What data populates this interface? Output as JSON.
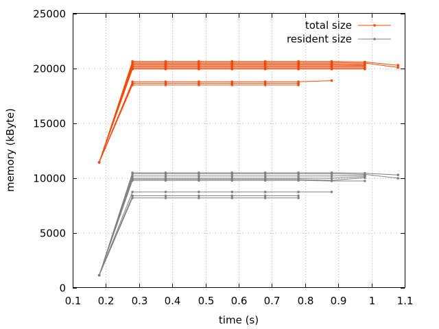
{
  "chart_data": {
    "type": "line",
    "xlabel": "time (s)",
    "ylabel": "memory  (kByte)",
    "xlim": [
      0.1,
      1.1
    ],
    "ylim": [
      0,
      25000
    ],
    "xticks": [
      "0.1",
      "0.2",
      "0.3",
      "0.4",
      "0.5",
      "0.6",
      "0.7",
      "0.8",
      "0.9",
      "1",
      "1.1"
    ],
    "yticks": [
      "0",
      "5000",
      "10000",
      "15000",
      "20000",
      "25000"
    ],
    "grid": true,
    "legend_position": "top-right",
    "series": [
      {
        "name": "total size",
        "color": "#ff4500",
        "lines": [
          {
            "x": [
              0.18,
              0.28,
              0.38,
              0.48,
              0.58,
              0.68,
              0.78,
              0.88,
              0.98,
              1.08
            ],
            "y": [
              11450,
              20650,
              20650,
              20650,
              20650,
              20650,
              20650,
              20650,
              20600,
              20300
            ]
          },
          {
            "x": [
              0.18,
              0.28,
              0.38,
              0.48,
              0.58,
              0.68,
              0.78,
              0.88,
              0.98,
              1.08
            ],
            "y": [
              11450,
              20550,
              20550,
              20550,
              20550,
              20550,
              20550,
              20550,
              20500,
              20100
            ]
          },
          {
            "x": [
              0.18,
              0.28,
              0.38,
              0.48,
              0.58,
              0.68,
              0.78,
              0.88,
              0.98
            ],
            "y": [
              11450,
              20450,
              20450,
              20450,
              20450,
              20450,
              20450,
              20450,
              20400
            ]
          },
          {
            "x": [
              0.18,
              0.28,
              0.38,
              0.48,
              0.58,
              0.68,
              0.78,
              0.88,
              0.98
            ],
            "y": [
              11450,
              20350,
              20350,
              20350,
              20350,
              20350,
              20350,
              20350,
              20300
            ]
          },
          {
            "x": [
              0.18,
              0.28,
              0.38,
              0.48,
              0.58,
              0.68,
              0.78,
              0.88,
              0.98
            ],
            "y": [
              11450,
              20250,
              20250,
              20250,
              20250,
              20250,
              20250,
              20250,
              20250
            ]
          },
          {
            "x": [
              0.18,
              0.28,
              0.38,
              0.48,
              0.58,
              0.68,
              0.78,
              0.88,
              0.98
            ],
            "y": [
              11450,
              20150,
              20150,
              20150,
              20150,
              20150,
              20150,
              20150,
              20150
            ]
          },
          {
            "x": [
              0.18,
              0.28,
              0.38,
              0.48,
              0.58,
              0.68,
              0.78,
              0.88,
              0.98
            ],
            "y": [
              11450,
              20050,
              20050,
              20050,
              20050,
              20050,
              20050,
              20050,
              20050
            ]
          },
          {
            "x": [
              0.18,
              0.28,
              0.38,
              0.48,
              0.58,
              0.68,
              0.78,
              0.88,
              0.98
            ],
            "y": [
              11450,
              19950,
              19950,
              19950,
              19950,
              19950,
              19950,
              19950,
              19950
            ]
          },
          {
            "x": [
              0.18,
              0.28,
              0.38,
              0.48,
              0.58,
              0.68,
              0.78,
              0.88
            ],
            "y": [
              11450,
              18800,
              18800,
              18800,
              18800,
              18800,
              18800,
              18900
            ]
          },
          {
            "x": [
              0.18,
              0.28,
              0.38,
              0.48,
              0.58,
              0.68,
              0.78
            ],
            "y": [
              11450,
              18650,
              18650,
              18650,
              18650,
              18650,
              18650
            ]
          },
          {
            "x": [
              0.18,
              0.28,
              0.38,
              0.48,
              0.58,
              0.68,
              0.78
            ],
            "y": [
              11450,
              18500,
              18500,
              18500,
              18500,
              18500,
              18500
            ]
          }
        ]
      },
      {
        "name": "resident size",
        "color": "#808080",
        "lines": [
          {
            "x": [
              0.18,
              0.28,
              0.38,
              0.48,
              0.58,
              0.68,
              0.78,
              0.88,
              0.98,
              1.08
            ],
            "y": [
              1150,
              10500,
              10500,
              10500,
              10500,
              10500,
              10500,
              10500,
              10450,
              10300
            ]
          },
          {
            "x": [
              0.18,
              0.28,
              0.38,
              0.48,
              0.58,
              0.68,
              0.78,
              0.88,
              0.98,
              1.08
            ],
            "y": [
              1150,
              10400,
              10400,
              10400,
              10400,
              10400,
              10400,
              10400,
              10350,
              10000
            ]
          },
          {
            "x": [
              0.18,
              0.28,
              0.38,
              0.48,
              0.58,
              0.68,
              0.78,
              0.88,
              0.98
            ],
            "y": [
              1150,
              10200,
              10200,
              10200,
              10200,
              10200,
              10200,
              10200,
              10250
            ]
          },
          {
            "x": [
              0.18,
              0.28,
              0.38,
              0.48,
              0.58,
              0.68,
              0.78,
              0.88,
              0.98
            ],
            "y": [
              1150,
              10000,
              10000,
              10000,
              10000,
              10000,
              10000,
              10000,
              10150
            ]
          },
          {
            "x": [
              0.18,
              0.28,
              0.38,
              0.48,
              0.58,
              0.68,
              0.78,
              0.88,
              0.98
            ],
            "y": [
              1150,
              9900,
              9900,
              9900,
              9900,
              9900,
              9900,
              9800,
              10050
            ]
          },
          {
            "x": [
              0.18,
              0.28,
              0.38,
              0.48,
              0.58,
              0.68,
              0.78,
              0.88,
              0.98
            ],
            "y": [
              1150,
              9800,
              9800,
              9800,
              9800,
              9800,
              9800,
              9750,
              9750
            ]
          },
          {
            "x": [
              0.18,
              0.28,
              0.38,
              0.48,
              0.58,
              0.68,
              0.78,
              0.88
            ],
            "y": [
              1150,
              8750,
              8750,
              8750,
              8750,
              8750,
              8750,
              8750
            ]
          },
          {
            "x": [
              0.18,
              0.28,
              0.38,
              0.48,
              0.58,
              0.68,
              0.78
            ],
            "y": [
              1150,
              8400,
              8400,
              8400,
              8400,
              8400,
              8400
            ]
          },
          {
            "x": [
              0.18,
              0.28,
              0.38,
              0.48,
              0.58,
              0.68,
              0.78
            ],
            "y": [
              1150,
              8200,
              8200,
              8200,
              8200,
              8200,
              8200
            ]
          }
        ]
      }
    ]
  }
}
